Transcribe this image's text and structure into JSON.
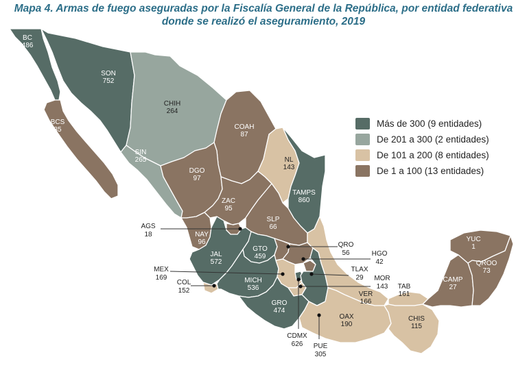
{
  "title_line1": "Mapa 4. Armas de fuego aseguradas por la Fiscalía General de la República, por entidad federativa",
  "title_line2": "donde se realizó el aseguramiento, 2019",
  "colors": {
    "cat1": "#566c66",
    "cat2": "#97a69e",
    "cat3": "#d8c2a4",
    "cat4": "#8a7462",
    "border": "#ffffff"
  },
  "legend": [
    {
      "label": "Más de 300 (9 entidades)",
      "color": "#566c66"
    },
    {
      "label": "De 201 a 300 (2 entidades)",
      "color": "#97a69e"
    },
    {
      "label": "De 101 a 200 (8 entidades)",
      "color": "#d8c2a4"
    },
    {
      "label": "De 1 a 100 (13 entidades)",
      "color": "#8a7462"
    }
  ],
  "states": {
    "BC": {
      "code": "BC",
      "value": "486"
    },
    "BCS": {
      "code": "BCS",
      "value": "35"
    },
    "SON": {
      "code": "SON",
      "value": "752"
    },
    "CHIH": {
      "code": "CHIH",
      "value": "264"
    },
    "SIN": {
      "code": "SIN",
      "value": "265"
    },
    "COAH": {
      "code": "COAH",
      "value": "87"
    },
    "DGO": {
      "code": "DGO",
      "value": "97"
    },
    "NL": {
      "code": "NL",
      "value": "143"
    },
    "TAMPS": {
      "code": "TAMPS",
      "value": "860"
    },
    "ZAC": {
      "code": "ZAC",
      "value": "95"
    },
    "SLP": {
      "code": "SLP",
      "value": "66"
    },
    "AGS": {
      "code": "AGS",
      "value": "18"
    },
    "NAY": {
      "code": "NAY",
      "value": "96"
    },
    "JAL": {
      "code": "JAL",
      "value": "572"
    },
    "GTO": {
      "code": "GTO",
      "value": "459"
    },
    "QRO": {
      "code": "QRO",
      "value": "56"
    },
    "HGO": {
      "code": "HGO",
      "value": "42"
    },
    "MEX": {
      "code": "MEX",
      "value": "169"
    },
    "TLAX": {
      "code": "TLAX",
      "value": "29"
    },
    "MOR": {
      "code": "MOR",
      "value": "143"
    },
    "COL": {
      "code": "COL",
      "value": "152"
    },
    "MICH": {
      "code": "MICH",
      "value": "536"
    },
    "TAB": {
      "code": "TAB",
      "value": "161"
    },
    "VER": {
      "code": "VER",
      "value": "166"
    },
    "GRO": {
      "code": "GRO",
      "value": "474"
    },
    "OAX": {
      "code": "OAX",
      "value": "190"
    },
    "CHIS": {
      "code": "CHIS",
      "value": "115"
    },
    "CDMX": {
      "code": "CDMX",
      "value": "626"
    },
    "PUE": {
      "code": "PUE",
      "value": "305"
    },
    "YUC": {
      "code": "YUC",
      "value": "1"
    },
    "CAMP": {
      "code": "CAMP",
      "value": "27"
    },
    "QROO": {
      "code": "QROO",
      "value": "73"
    }
  }
}
